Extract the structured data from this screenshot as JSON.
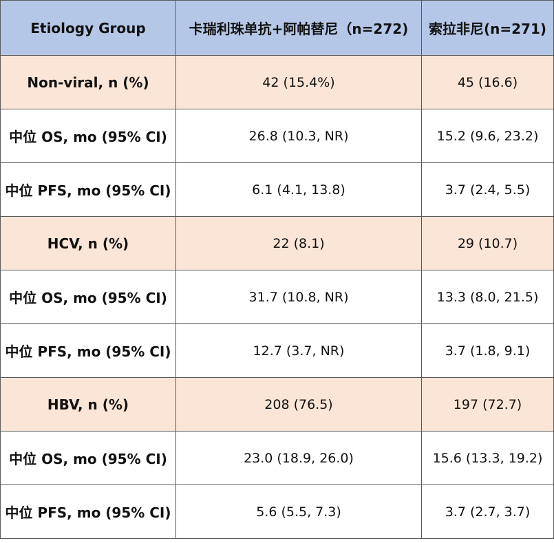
{
  "header": {
    "col1": "Etiology Group",
    "col2": "卡瑞利珠单抗+阿帕替尼（n=272)",
    "col3": "索拉非尼(n=271)"
  },
  "rows": [
    {
      "type": "group",
      "label": "Non-viral, n (%)",
      "a": "42 (15.4%)",
      "b": "45 (16.6)"
    },
    {
      "type": "detail",
      "label": "中位 OS, mo (95% CI)",
      "a": "26.8 (10.3, NR)",
      "b": "15.2 (9.6, 23.2)"
    },
    {
      "type": "detail",
      "label": "中位 PFS, mo (95% CI)",
      "a": "6.1 (4.1, 13.8)",
      "b": "3.7 (2.4, 5.5)"
    },
    {
      "type": "group",
      "label": "HCV, n (%)",
      "a": "22 (8.1)",
      "b": "29 (10.7)"
    },
    {
      "type": "detail",
      "label": "中位 OS, mo (95% CI)",
      "a": "31.7 (10.8, NR)",
      "b": "13.3 (8.0, 21.5)"
    },
    {
      "type": "detail",
      "label": "中位 PFS, mo (95% CI)",
      "a": "12.7 (3.7, NR)",
      "b": "3.7 (1.8, 9.1)"
    },
    {
      "type": "group",
      "label": "HBV, n (%)",
      "a": "208 (76.5)",
      "b": "197 (72.7)"
    },
    {
      "type": "detail",
      "label": "中位 OS, mo (95% CI)",
      "a": "23.0 (18.9, 26.0)",
      "b": "15.6 (13.3, 19.2)"
    },
    {
      "type": "detail",
      "label": "中位 PFS, mo (95% CI)",
      "a": "5.6 (5.5, 7.3)",
      "b": "3.7 (2.7, 3.7)"
    }
  ],
  "colors": {
    "header_bg": "#b4c7e7",
    "group_bg": "#fbe5d6",
    "detail_bg": "#ffffff",
    "border": "#5a5a5a"
  }
}
